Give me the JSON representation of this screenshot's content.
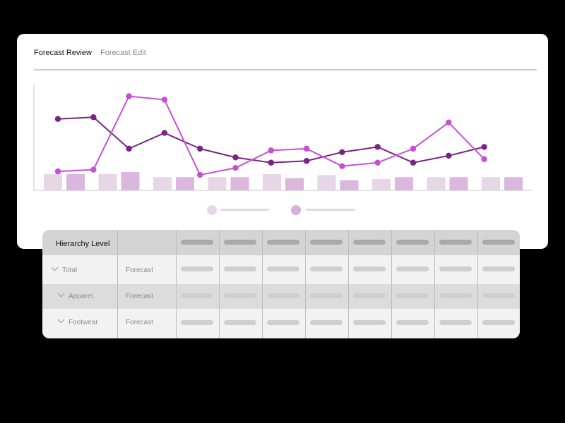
{
  "tabs": [
    {
      "label": "Forecast Review",
      "active": true
    },
    {
      "label": "Forecast Edit",
      "active": false
    }
  ],
  "colors": {
    "series_dark": "#7a2386",
    "series_light": "#c64fd4",
    "bar_light": "#e7d6e7",
    "bar_dark": "#dbb6df"
  },
  "chart_data": {
    "type": "line",
    "x": [
      1,
      2,
      3,
      4,
      5,
      6,
      7,
      8,
      9,
      10,
      11,
      12,
      13
    ],
    "series": [
      {
        "values": [
          72,
          74,
          38,
          56,
          38,
          28,
          22,
          24,
          34,
          40,
          22,
          30,
          40
        ]
      },
      {
        "values": [
          12,
          14,
          98,
          94,
          8,
          16,
          36,
          38,
          18,
          22,
          38,
          68,
          26
        ]
      }
    ],
    "bars": {
      "groups": 9,
      "light": [
        16,
        16,
        13,
        13,
        16,
        15,
        11,
        13,
        13
      ],
      "dark": [
        16,
        18,
        13,
        13,
        12,
        10,
        13,
        13,
        13
      ]
    },
    "ylim": [
      0,
      100
    ],
    "grid": false,
    "legend": "bottom-center"
  },
  "table": {
    "header": "Hierarchy Level",
    "rows": [
      {
        "name": "Total",
        "type": "Forecast"
      },
      {
        "name": "Apparel",
        "type": "Forecast"
      },
      {
        "name": "Footwear",
        "type": "Forecast"
      }
    ],
    "value_columns": 8
  }
}
